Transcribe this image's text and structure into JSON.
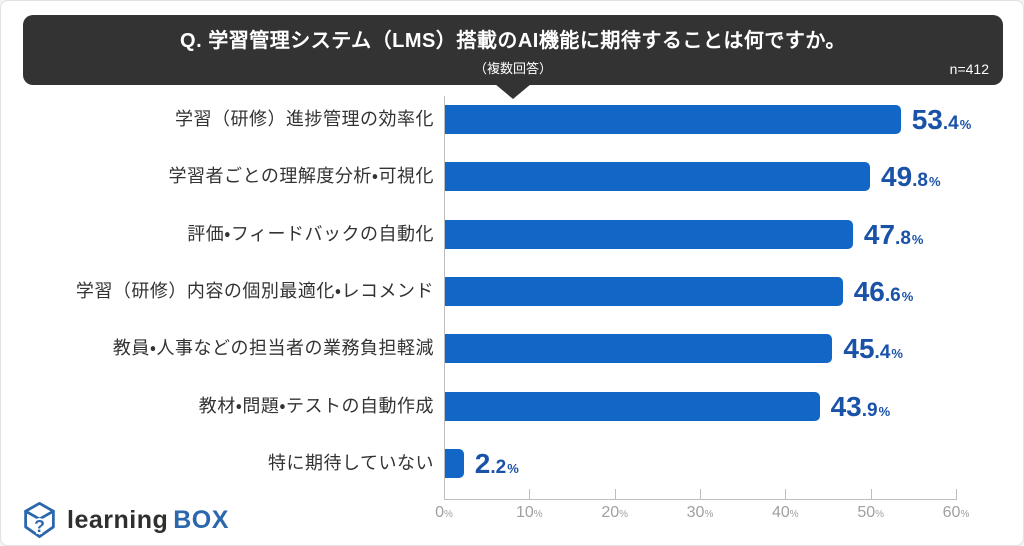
{
  "colors": {
    "banner_bg": "#333333",
    "banner_text": "#ffffff",
    "bar": "#1266c5",
    "value_text": "#1a52a8",
    "category_text": "#333333",
    "axis_line": "#bdbdbd",
    "axis_text": "#a0a0a0",
    "logo_dark": "#2f2f2f",
    "logo_blue": "#2a67ad",
    "border": "#e2e2e2"
  },
  "header": {
    "question": "Q. 学習管理システム（LMS）搭載のAI機能に期待することは何ですか。",
    "note": "（複数回答）",
    "sample_size": "n=412"
  },
  "chart_data": {
    "type": "bar",
    "orientation": "horizontal",
    "title": "学習管理システム（LMS）搭載のAI機能に期待すること",
    "categories": [
      "学習（研修）進捗管理の効率化",
      "学習者ごとの理解度分析・可視化",
      "評価・フィードバックの自動化",
      "学習（研修）内容の個別最適化・レコメンド",
      "教員・人事などの担当者の業務負担軽減",
      "教材・問題・テストの自動作成",
      "特に期待していない"
    ],
    "values": [
      53.4,
      49.8,
      47.8,
      46.6,
      45.4,
      43.9,
      2.2
    ],
    "value_suffix": "%",
    "xlim": [
      0,
      60
    ],
    "xticks": [
      0,
      10,
      20,
      30,
      40,
      50,
      60
    ],
    "xtick_suffix": "%",
    "grid": false,
    "legend": false
  },
  "footer": {
    "logo_learning": "learning",
    "logo_box": "BOX"
  }
}
